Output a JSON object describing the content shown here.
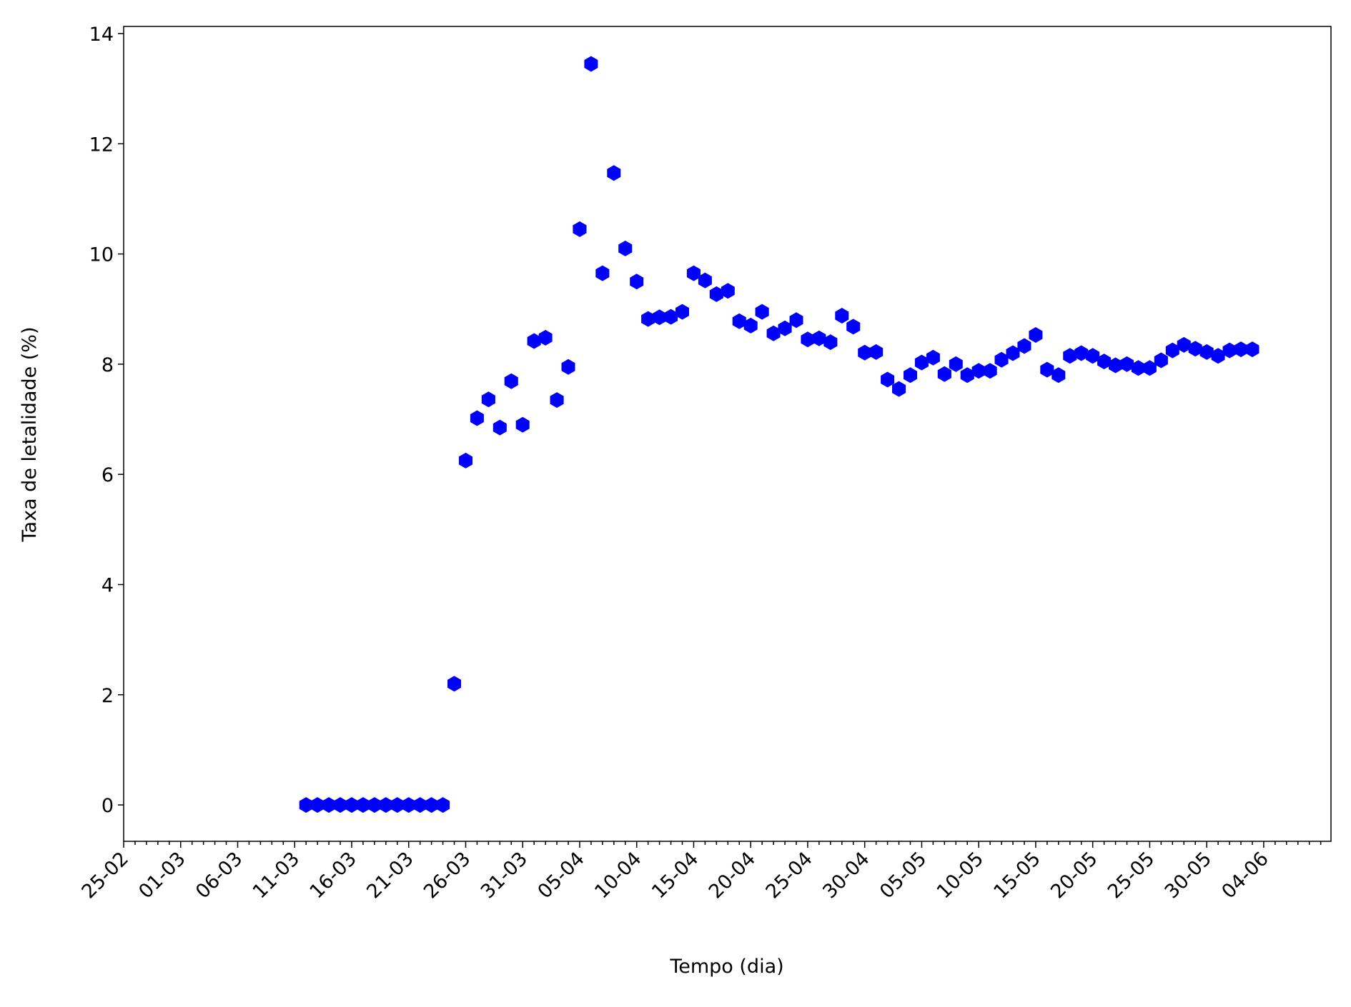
{
  "chart_data": {
    "type": "scatter",
    "xlabel": "Tempo (dia)",
    "ylabel": "Taxa de letalidade (%)",
    "color": "#0000ff",
    "categories": [
      "25-02",
      null,
      null,
      null,
      null,
      "01-03",
      null,
      null,
      null,
      null,
      "06-03",
      null,
      null,
      null,
      null,
      "11-03",
      null,
      null,
      null,
      null,
      "16-03",
      null,
      null,
      null,
      null,
      "21-03",
      null,
      null,
      null,
      null,
      "26-03",
      null,
      null,
      null,
      null,
      "31-03",
      null,
      null,
      null,
      null,
      "05-04",
      null,
      null,
      null,
      null,
      "10-04",
      null,
      null,
      null,
      null,
      "15-04",
      null,
      null,
      null,
      null,
      "20-04",
      null,
      null,
      null,
      null,
      "25-04",
      null,
      null,
      null,
      null,
      "30-04",
      null,
      null,
      null,
      null,
      "05-05",
      null,
      null,
      null,
      null,
      "10-05",
      null,
      null,
      null,
      null,
      "15-05",
      null,
      null,
      null,
      null,
      "20-05",
      null,
      null,
      null,
      null,
      "25-05",
      null,
      null,
      null,
      null,
      "30-05",
      null,
      null,
      null,
      null,
      "04-06",
      null,
      null,
      null,
      null,
      null
    ],
    "values": [
      null,
      null,
      null,
      null,
      null,
      null,
      null,
      null,
      null,
      null,
      null,
      null,
      null,
      null,
      null,
      null,
      0,
      0,
      0,
      0,
      0,
      0,
      0,
      0,
      0,
      0,
      0,
      0,
      0,
      2.2,
      6.25,
      7.02,
      7.36,
      6.85,
      7.69,
      6.9,
      8.42,
      8.48,
      7.35,
      7.95,
      10.45,
      13.45,
      9.65,
      11.47,
      10.1,
      9.5,
      8.82,
      8.85,
      8.86,
      8.95,
      9.65,
      9.52,
      9.27,
      9.33,
      8.78,
      8.7,
      8.95,
      8.56,
      8.65,
      8.8,
      8.45,
      8.47,
      8.4,
      8.88,
      8.68,
      8.21,
      8.22,
      7.72,
      7.55,
      7.8,
      8.03,
      8.12,
      7.82,
      8.0,
      7.8,
      7.88,
      7.88,
      8.08,
      8.2,
      8.33,
      8.53,
      7.9,
      7.8,
      8.15,
      8.2,
      8.15,
      8.05,
      7.98,
      8.0,
      7.93,
      7.93,
      8.07,
      8.25,
      8.35,
      8.28,
      8.22,
      8.15,
      8.25,
      8.27,
      8.27,
      null,
      null,
      null,
      null,
      null,
      null
    ],
    "ylim": [
      -0.66,
      14.13
    ],
    "yticks": [
      0,
      2,
      4,
      6,
      8,
      10,
      12,
      14
    ]
  }
}
